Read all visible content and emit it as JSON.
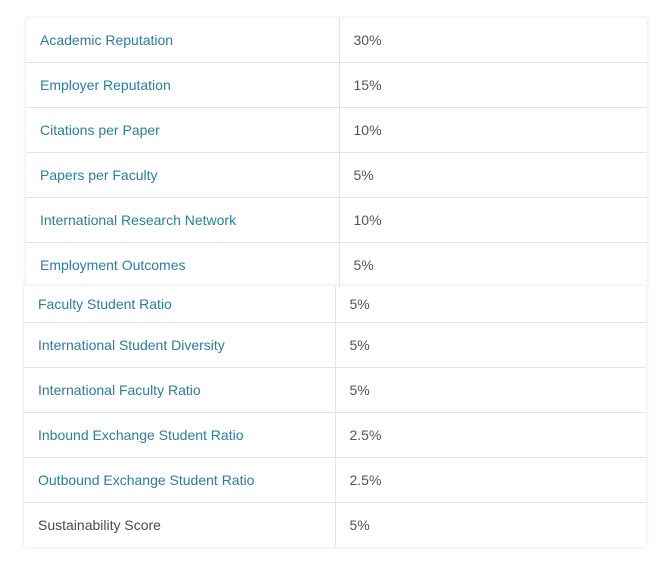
{
  "top_table": {
    "rows": [
      {
        "metric": "Academic Reputation",
        "weight": "30%"
      },
      {
        "metric": "Employer Reputation",
        "weight": "15%"
      },
      {
        "metric": "Citations per Paper",
        "weight": "10%"
      },
      {
        "metric": "Papers per Faculty",
        "weight": "5%"
      },
      {
        "metric": "International Research Network",
        "weight": "10%"
      },
      {
        "metric": "Employment Outcomes",
        "weight": "5%"
      }
    ]
  },
  "bottom_table": {
    "rows": [
      {
        "metric": "Faculty Student Ratio",
        "weight": "5%"
      },
      {
        "metric": "International Student Diversity",
        "weight": "5%"
      },
      {
        "metric": "International Faculty Ratio",
        "weight": "5%"
      },
      {
        "metric": "Inbound Exchange Student Ratio",
        "weight": "2.5%"
      },
      {
        "metric": "Outbound Exchange Student Ratio",
        "weight": "2.5%"
      },
      {
        "metric": "Sustainability Score",
        "weight": "5%"
      }
    ]
  },
  "colors": {
    "link_text": "#2a7f9c",
    "plain_text": "#4a4a4a",
    "value_text": "#555555",
    "border": "#e4e4e4"
  }
}
